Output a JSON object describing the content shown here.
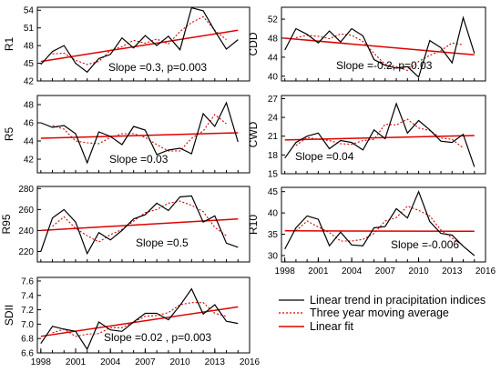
{
  "colors": {
    "observed": "#000000",
    "moving_average": "#d40000",
    "linear_fit": "#e00000"
  },
  "legend": {
    "observed": "Linear trend in pracipitation indices",
    "moving_average": "Three year moving average",
    "linear_fit": "Linear fit"
  },
  "chart_data": [
    {
      "type": "line",
      "ylabel": "R1",
      "ylim": [
        42,
        54.5
      ],
      "yticks": [
        42,
        45,
        48,
        51,
        54
      ],
      "annotation": "Slope =0.3, p=0.003",
      "x": [
        1998,
        1999,
        2000,
        2001,
        2002,
        2003,
        2004,
        2005,
        2006,
        2007,
        2008,
        2009,
        2010,
        2011,
        2012,
        2013,
        2014,
        2015
      ],
      "series": [
        {
          "values": [
            44.8,
            47,
            48,
            45,
            43.5,
            45.8,
            46.5,
            49.3,
            47.6,
            49.7,
            48,
            49.6,
            47.3,
            54.4,
            53.9,
            50.5,
            47.4,
            49
          ]
        },
        {
          "values": [
            null,
            46.6,
            46.7,
            45.5,
            44.8,
            45.3,
            47.2,
            47.8,
            48.9,
            48.4,
            49.1,
            48.3,
            50.4,
            51.9,
            52.9,
            50.6,
            49,
            null
          ]
        }
      ],
      "fit": {
        "start": [
          1998,
          45.3
        ],
        "end": [
          2015,
          50.6
        ]
      }
    },
    {
      "type": "line",
      "ylabel": "CDD",
      "ylim": [
        39,
        54.5
      ],
      "yticks": [
        40,
        44,
        48,
        52
      ],
      "annotation": "Slope =-0.2, p=0.03",
      "x": [
        1998,
        1999,
        2000,
        2001,
        2002,
        2003,
        2004,
        2005,
        2006,
        2007,
        2008,
        2009,
        2010,
        2011,
        2012,
        2013,
        2014,
        2015
      ],
      "series": [
        {
          "values": [
            45.5,
            50,
            48.8,
            47,
            49.5,
            47.2,
            50,
            48.5,
            43.5,
            42.3,
            41.7,
            42,
            39.8,
            47.5,
            46,
            42.8,
            52.3,
            44.8
          ]
        },
        {
          "values": [
            null,
            48.1,
            48.6,
            48.4,
            47.9,
            48.9,
            48.6,
            47.3,
            44.8,
            42.5,
            42,
            41.2,
            43.1,
            44.4,
            45.4,
            47,
            46.6,
            null
          ]
        }
      ],
      "fit": {
        "start": [
          1998,
          48
        ],
        "end": [
          2015,
          44.5
        ]
      }
    },
    {
      "type": "line",
      "ylabel": "R5",
      "ylim": [
        40.5,
        49
      ],
      "yticks": [
        42,
        44,
        46,
        48
      ],
      "annotation": "Slope =0.03",
      "x": [
        1998,
        1999,
        2000,
        2001,
        2002,
        2003,
        2004,
        2005,
        2006,
        2007,
        2008,
        2009,
        2010,
        2011,
        2012,
        2013,
        2014,
        2015
      ],
      "series": [
        {
          "values": [
            46,
            45.5,
            45.7,
            44.8,
            41.6,
            45,
            44.5,
            43.6,
            45.6,
            45.2,
            42.5,
            43,
            43.2,
            42.6,
            47,
            45.6,
            48.2,
            43.9
          ]
        },
        {
          "values": [
            null,
            45.7,
            45.3,
            44,
            43.8,
            43.7,
            44.4,
            44.8,
            44.8,
            44.4,
            43.6,
            42.9,
            42.9,
            44.3,
            45.1,
            46.9,
            45.9,
            null
          ]
        }
      ],
      "fit": {
        "start": [
          1998,
          44.3
        ],
        "end": [
          2015,
          44.9
        ]
      }
    },
    {
      "type": "line",
      "ylabel": "CWD",
      "ylim": [
        15,
        27.5
      ],
      "yticks": [
        15,
        18,
        21,
        24,
        27
      ],
      "annotation": "Slope =0.04",
      "x": [
        1998,
        1999,
        2000,
        2001,
        2002,
        2003,
        2004,
        2005,
        2006,
        2007,
        2008,
        2009,
        2010,
        2011,
        2012,
        2013,
        2014,
        2015
      ],
      "series": [
        {
          "values": [
            17.5,
            20,
            21,
            21.5,
            19,
            20.3,
            20,
            18.8,
            22,
            20.6,
            26.2,
            21.5,
            23.5,
            22,
            20.2,
            20,
            21.3,
            16.1
          ]
        },
        {
          "values": [
            null,
            19.5,
            20.8,
            20.5,
            20.3,
            19.8,
            19.7,
            20.3,
            20.5,
            22.9,
            22.8,
            23.7,
            22.3,
            21.9,
            20.7,
            20.5,
            19.1,
            null
          ]
        }
      ],
      "fit": {
        "start": [
          1998,
          20.4
        ],
        "end": [
          2015,
          21.1
        ]
      }
    },
    {
      "type": "line",
      "ylabel": "R95",
      "ylim": [
        210,
        282
      ],
      "yticks": [
        220,
        240,
        260,
        280
      ],
      "annotation": "Slope =0.5",
      "x": [
        1998,
        1999,
        2000,
        2001,
        2002,
        2003,
        2004,
        2005,
        2006,
        2007,
        2008,
        2009,
        2010,
        2011,
        2012,
        2013,
        2014,
        2015
      ],
      "series": [
        {
          "values": [
            220,
            252,
            260,
            248,
            218,
            238,
            231,
            240,
            251,
            255,
            266,
            259,
            272,
            273,
            248,
            254,
            228,
            224
          ]
        },
        {
          "values": [
            null,
            244,
            253,
            242,
            235,
            229,
            236,
            241,
            249,
            257,
            260,
            266,
            268,
            264,
            258,
            243,
            235,
            null
          ]
        }
      ],
      "fit": {
        "start": [
          1998,
          240
        ],
        "end": [
          2015,
          251
        ]
      }
    },
    {
      "type": "line",
      "ylabel": "R10",
      "ylim": [
        28.5,
        46
      ],
      "yticks": [
        30,
        35,
        40,
        45
      ],
      "annotation": "Slope =-0.006",
      "xticks": [
        1998,
        2001,
        2004,
        2007,
        2010,
        2013,
        2016
      ],
      "x": [
        1998,
        1999,
        2000,
        2001,
        2002,
        2003,
        2004,
        2005,
        2006,
        2007,
        2008,
        2009,
        2010,
        2011,
        2012,
        2013,
        2014,
        2015
      ],
      "series": [
        {
          "values": [
            31.5,
            36.5,
            39.3,
            38.5,
            32.3,
            35.5,
            32.5,
            32.3,
            36.5,
            36.8,
            41,
            38.8,
            45,
            38,
            35.2,
            34.8,
            32.2,
            30
          ]
        },
        {
          "values": [
            null,
            35.8,
            38.1,
            36.7,
            35.4,
            33.4,
            33.4,
            33.8,
            35.2,
            38.1,
            38.9,
            41.6,
            40.6,
            39.3,
            36,
            34.1,
            32.3,
            null
          ]
        }
      ],
      "fit": {
        "start": [
          1998,
          35.8
        ],
        "end": [
          2015,
          35.7
        ]
      }
    },
    {
      "type": "line",
      "ylabel": "SDII",
      "ylim": [
        6.6,
        7.65
      ],
      "yticks": [
        6.6,
        6.8,
        7.0,
        7.2,
        7.4,
        7.6
      ],
      "annotation": "Slope =0.02 , p=0.003",
      "xticks": [
        1998,
        2001,
        2004,
        2007,
        2010,
        2013,
        2016
      ],
      "x": [
        1998,
        1999,
        2000,
        2001,
        2002,
        2003,
        2004,
        2005,
        2006,
        2007,
        2008,
        2009,
        2010,
        2011,
        2012,
        2013,
        2014,
        2015
      ],
      "series": [
        {
          "values": [
            6.73,
            6.97,
            6.93,
            6.9,
            6.65,
            7.03,
            6.92,
            6.9,
            7.03,
            7.15,
            7.15,
            7.06,
            7.26,
            7.49,
            7.14,
            7.27,
            7.04,
            7.01
          ]
        },
        {
          "values": [
            null,
            6.88,
            6.93,
            6.83,
            6.86,
            6.87,
            6.95,
            6.95,
            7.03,
            7.11,
            7.12,
            7.16,
            7.27,
            7.3,
            7.3,
            7.15,
            7.11,
            null
          ]
        }
      ],
      "fit": {
        "start": [
          1998,
          6.83
        ],
        "end": [
          2015,
          7.24
        ]
      }
    }
  ]
}
